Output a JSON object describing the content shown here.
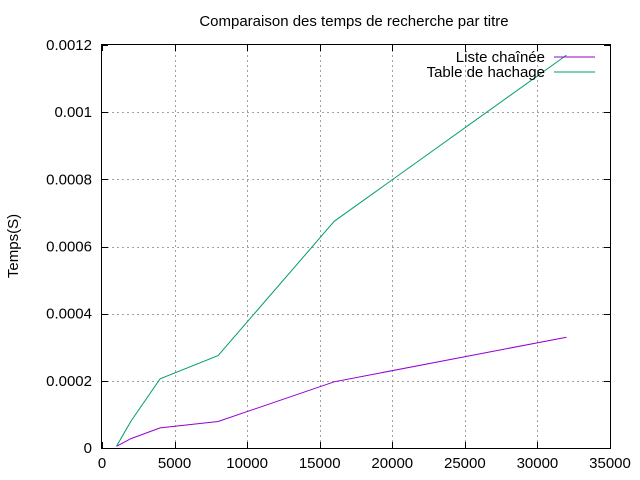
{
  "chart_data": {
    "type": "line",
    "title": "Comparaison des temps de recherche par titre",
    "xlabel": "",
    "ylabel": "Temps(S)",
    "xlim": [
      0,
      35000
    ],
    "ylim": [
      0,
      0.0012
    ],
    "x_ticks": [
      0,
      5000,
      10000,
      15000,
      20000,
      25000,
      30000,
      35000
    ],
    "x_tick_labels": [
      "0",
      "5000",
      "10000",
      "15000",
      "20000",
      "25000",
      "30000",
      "35000"
    ],
    "y_ticks": [
      0,
      0.0002,
      0.0004,
      0.0006,
      0.0008,
      0.001,
      0.0012
    ],
    "y_tick_labels": [
      "0",
      "0.0002",
      "0.0004",
      "0.0006",
      "0.0008",
      "0.001",
      "0.0012"
    ],
    "grid": true,
    "legend_position": "top-right",
    "series": [
      {
        "name": "Liste chaînée",
        "color": "#9400d3",
        "x": [
          1000,
          2000,
          4000,
          8000,
          16000,
          32000
        ],
        "y": [
          5e-06,
          2.8e-05,
          6e-05,
          7.9e-05,
          0.000197,
          0.00033
        ]
      },
      {
        "name": "Table de hachage",
        "color": "#009e73",
        "x": [
          1000,
          2000,
          4000,
          8000,
          16000,
          32000
        ],
        "y": [
          5e-06,
          8e-05,
          0.000206,
          0.000275,
          0.000675,
          0.00117
        ]
      }
    ]
  }
}
